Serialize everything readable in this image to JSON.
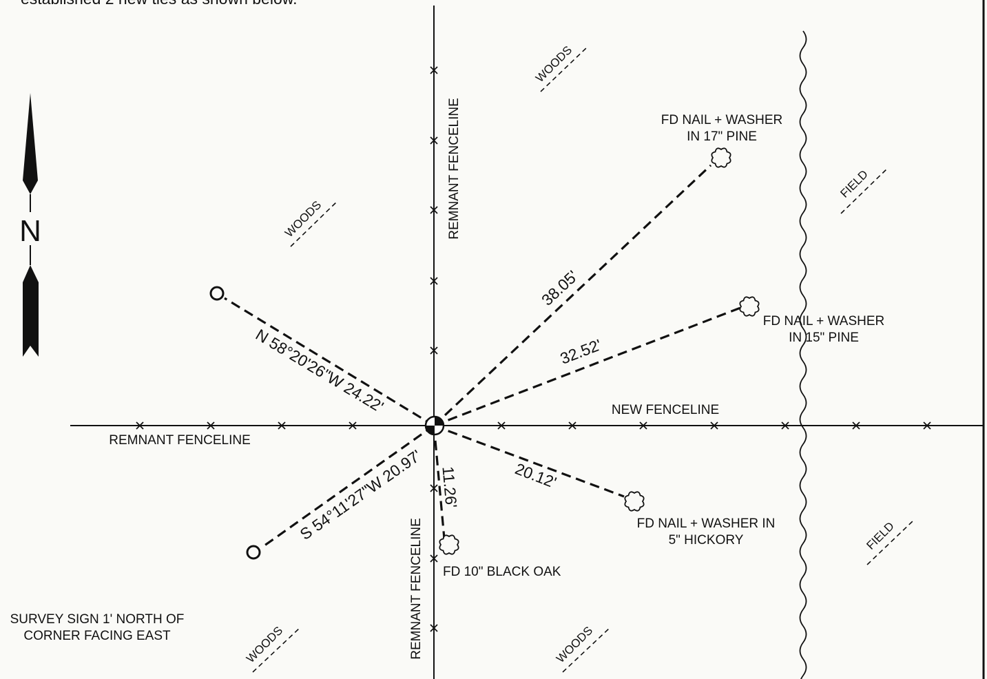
{
  "caption_partial": "established 2 new ties as shown below.",
  "north_arrow": {
    "letter": "N"
  },
  "fences": {
    "remnant_vertical_upper": "REMNANT FENCELINE",
    "remnant_vertical_lower": "REMNANT FENCELINE",
    "remnant_horizontal": "REMNANT FENCELINE",
    "new_fence": "NEW FENCELINE"
  },
  "ties": {
    "pine17_distance": "38.05'",
    "pine15_distance": "32.52'",
    "hickory_distance": "20.12'",
    "oak_distance": "11.26'",
    "nw_bearing": "N 58°20'26\"W 24.22'",
    "sw_bearing": "S 54°11'27\"W 20.97'"
  },
  "trees": {
    "pine17_line1": "FD NAIL + WASHER",
    "pine17_line2": "IN 17\" PINE",
    "pine15_line1": "FD NAIL + WASHER",
    "pine15_line2": "IN 15\" PINE",
    "hickory_line1": "FD NAIL + WASHER IN",
    "hickory_line2": "5\" HICKORY",
    "oak": "FD 10\" BLACK OAK"
  },
  "areas": {
    "woods_top_center": "WOODS",
    "woods_left": "WOODS",
    "woods_bottom_left": "WOODS",
    "woods_bottom_center": "WOODS",
    "field_top_right": "FIELD",
    "field_bottom_right": "FIELD"
  },
  "notes": {
    "sign_line1": "SURVEY SIGN 1' NORTH OF",
    "sign_line2": "CORNER FACING EAST"
  }
}
